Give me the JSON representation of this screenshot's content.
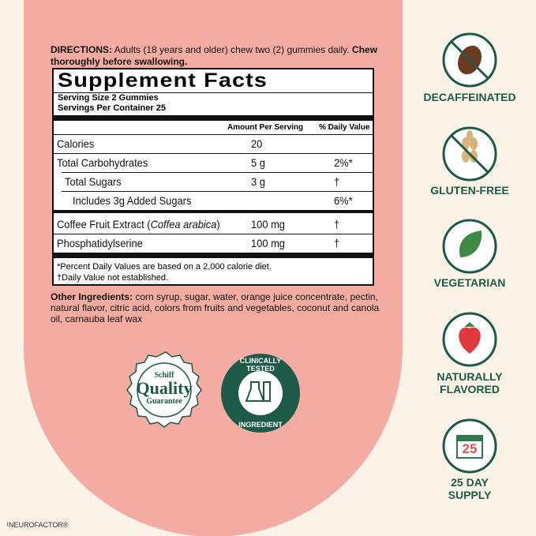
{
  "directions": {
    "label": "DIRECTIONS:",
    "text": "Adults (18 years and older) chew two (2) gummies daily.",
    "bold": "Chew thoroughly before swallowing."
  },
  "facts": {
    "title": "Supplement Facts",
    "serving_size": "Serving Size 2 Gummies",
    "servings": "Servings Per Container 25",
    "header_amount": "Amount Per Serving",
    "header_dv": "% Daily Value",
    "rows": [
      {
        "name": "Calories",
        "amount": "20"
      },
      {
        "name": "Total Carbohydrates",
        "amount": "5 g",
        "dv": "2%*"
      },
      {
        "name": "Total Sugars",
        "amount": "3 g",
        "dv": "†"
      },
      {
        "name": "Includes 3g Added Sugars",
        "dv": "6%*"
      },
      {
        "name": "Coffee Fruit Extract (",
        "name_italic": "Coffea arabica",
        "name_end": ")",
        "amount": "100 mg",
        "dv": "†"
      },
      {
        "name": "Phosphatidylserine",
        "amount": "100 mg",
        "dv": "†"
      }
    ],
    "footnotes": [
      "*Percent Daily Values are based on a 2,000 calorie diet.",
      "†Daily Value not established."
    ]
  },
  "ingredients": {
    "label": "Other Ingredients:",
    "text": "corn syrup, sugar, water, orange juice concentrate, pectin, natural flavor, citric acid, colors from fruits and vegetables, coconut and canola oil, carnauba leaf wax"
  },
  "seals": {
    "quality": [
      "Schiff",
      "Quality",
      "Guarantee"
    ],
    "clinical": [
      "CLINICALLY TESTED",
      "INGREDIENT"
    ]
  },
  "features": [
    {
      "lines": [
        "DECAFFEINATED"
      ]
    },
    {
      "lines": [
        "GLUTEN-FREE"
      ]
    },
    {
      "lines": [
        "VEGETARIAN"
      ]
    },
    {
      "lines": [
        "NATURALLY",
        "FLAVORED"
      ]
    },
    {
      "icon_text": "25",
      "lines": [
        "25 DAY",
        "SUPPLY"
      ]
    }
  ],
  "footer": "¹NEUROFACTOR®"
}
